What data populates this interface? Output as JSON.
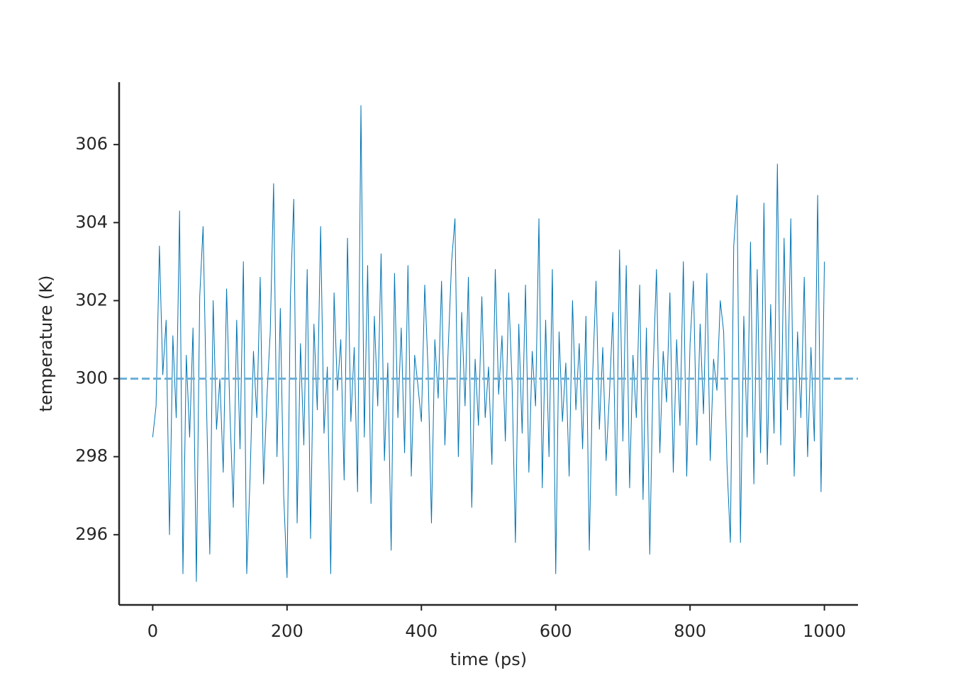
{
  "chart_data": {
    "type": "line",
    "x_label": "time (ps)",
    "y_label": "temperature (K)",
    "color": "#0173b2",
    "reference_line": {
      "value": 300,
      "color": "#6aaed6",
      "style": "dashed"
    },
    "xlim": [
      -50,
      1050
    ],
    "xticks": [
      0,
      200,
      400,
      600,
      800,
      1000
    ],
    "ylim": [
      294.2,
      307.6
    ],
    "yticks": [
      296,
      298,
      300,
      302,
      304,
      306
    ],
    "grid": false,
    "x": [
      0,
      5,
      10,
      15,
      20,
      25,
      30,
      35,
      40,
      45,
      50,
      55,
      60,
      65,
      70,
      75,
      80,
      85,
      90,
      95,
      100,
      105,
      110,
      115,
      120,
      125,
      130,
      135,
      140,
      145,
      150,
      155,
      160,
      165,
      170,
      175,
      180,
      185,
      190,
      195,
      200,
      205,
      210,
      215,
      220,
      225,
      230,
      235,
      240,
      245,
      250,
      255,
      260,
      265,
      270,
      275,
      280,
      285,
      290,
      295,
      300,
      305,
      310,
      315,
      320,
      325,
      330,
      335,
      340,
      345,
      350,
      355,
      360,
      365,
      370,
      375,
      380,
      385,
      390,
      395,
      400,
      405,
      410,
      415,
      420,
      425,
      430,
      435,
      440,
      445,
      450,
      455,
      460,
      465,
      470,
      475,
      480,
      485,
      490,
      495,
      500,
      505,
      510,
      515,
      520,
      525,
      530,
      535,
      540,
      545,
      550,
      555,
      560,
      565,
      570,
      575,
      580,
      585,
      590,
      595,
      600,
      605,
      610,
      615,
      620,
      625,
      630,
      635,
      640,
      645,
      650,
      655,
      660,
      665,
      670,
      675,
      680,
      685,
      690,
      695,
      700,
      705,
      710,
      715,
      720,
      725,
      730,
      735,
      740,
      745,
      750,
      755,
      760,
      765,
      770,
      775,
      780,
      785,
      790,
      795,
      800,
      805,
      810,
      815,
      820,
      825,
      830,
      835,
      840,
      845,
      850,
      855,
      860,
      865,
      870,
      875,
      880,
      885,
      890,
      895,
      900,
      905,
      910,
      915,
      920,
      925,
      930,
      935,
      940,
      945,
      950,
      955,
      960,
      965,
      970,
      975,
      980,
      985,
      990,
      995,
      1000
    ],
    "values": [
      298.5,
      299.3,
      303.4,
      300.1,
      301.5,
      296.0,
      301.1,
      299.0,
      304.3,
      295.0,
      300.6,
      298.5,
      301.3,
      294.8,
      302.1,
      303.9,
      299.4,
      295.5,
      302.0,
      298.7,
      300.0,
      297.6,
      302.3,
      299.1,
      296.7,
      301.5,
      298.2,
      303.0,
      295.0,
      297.5,
      300.7,
      299.0,
      302.6,
      297.3,
      299.5,
      301.2,
      305.0,
      298.0,
      301.8,
      297.0,
      294.9,
      302.1,
      304.6,
      296.3,
      300.9,
      298.3,
      302.8,
      295.9,
      301.4,
      299.2,
      303.9,
      298.6,
      300.3,
      295.0,
      302.2,
      299.7,
      301.0,
      297.4,
      303.6,
      298.9,
      300.8,
      297.1,
      307.0,
      298.5,
      302.9,
      296.8,
      301.6,
      299.3,
      303.2,
      297.9,
      300.4,
      295.6,
      302.7,
      299.0,
      301.3,
      298.1,
      302.9,
      297.5,
      300.6,
      299.8,
      298.9,
      302.4,
      300.2,
      296.3,
      301.0,
      299.5,
      302.5,
      298.3,
      300.8,
      303.0,
      304.1,
      298.0,
      301.7,
      299.3,
      302.6,
      296.7,
      300.5,
      298.8,
      302.1,
      299.0,
      300.3,
      297.8,
      302.8,
      299.6,
      301.1,
      298.4,
      302.2,
      299.9,
      295.8,
      301.4,
      298.6,
      302.4,
      297.6,
      300.7,
      299.3,
      304.1,
      297.2,
      301.5,
      298.0,
      302.8,
      295.0,
      301.2,
      298.9,
      300.4,
      297.5,
      302.0,
      299.2,
      300.9,
      298.2,
      301.6,
      295.6,
      300.1,
      302.5,
      298.7,
      300.8,
      297.9,
      299.6,
      301.7,
      297.0,
      303.3,
      298.4,
      302.9,
      297.2,
      300.6,
      299.0,
      302.4,
      296.9,
      301.3,
      295.5,
      300.2,
      302.8,
      298.1,
      300.7,
      299.4,
      302.2,
      297.6,
      301.0,
      298.8,
      303.0,
      297.5,
      300.9,
      302.5,
      298.3,
      301.4,
      299.1,
      302.7,
      297.9,
      300.5,
      299.7,
      302.0,
      301.2,
      297.8,
      295.8,
      303.4,
      304.7,
      295.8,
      301.6,
      298.5,
      303.5,
      297.3,
      302.8,
      298.1,
      304.5,
      297.8,
      301.9,
      298.6,
      305.5,
      298.3,
      303.6,
      299.2,
      304.1,
      297.5,
      301.2,
      299.0,
      302.6,
      298.0,
      300.8,
      298.4,
      304.7,
      297.1,
      303.0
    ]
  }
}
